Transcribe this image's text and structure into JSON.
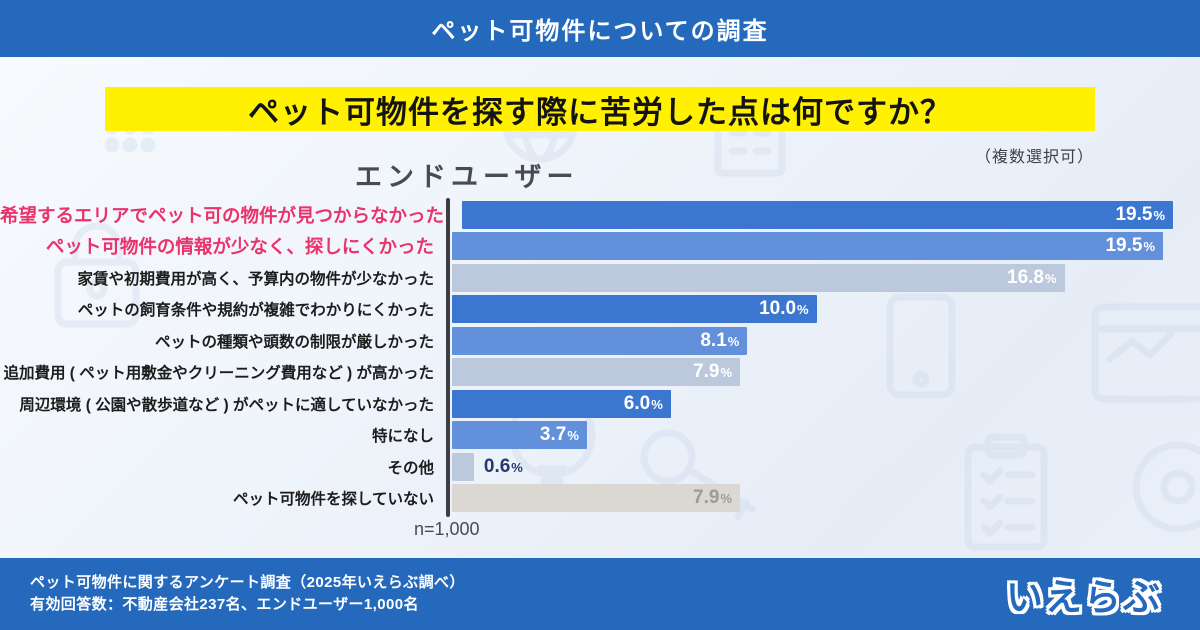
{
  "header": {
    "title": "ペット可物件についての調査"
  },
  "question": {
    "title": "ペット可物件を探す際に苦労した点は何ですか？",
    "note": "（複数選択可）",
    "group_label": "エンドユーザー"
  },
  "chart_data": {
    "type": "bar",
    "orientation": "horizontal",
    "title": "ペット可物件を探す際に苦労した点は何ですか？",
    "group": "エンドユーザー",
    "unit": "%",
    "xlim": [
      0,
      19.5
    ],
    "grid": false,
    "legend": "none",
    "categories": [
      "希望するエリアでペット可の物件が見つからなかった",
      "ペット可物件の情報が少なく、探しにくかった",
      "家賃や初期費用が高く、予算内の物件が少なかった",
      "ペットの飼育条件や規約が複雑でわかりにくかった",
      "ペットの種類や頭数の制限が厳しかった",
      "追加費用 ( ペット用敷金やクリーニング費用など ) が高かった",
      "周辺環境 ( 公園や散歩道など ) がペットに適していなかった",
      "特になし",
      "その他",
      "ペット可物件を探していない"
    ],
    "values": [
      19.5,
      19.5,
      16.8,
      10.0,
      8.1,
      7.9,
      6.0,
      3.7,
      0.6,
      7.9
    ],
    "value_labels": [
      "19.5",
      "19.5",
      "16.8",
      "10.0",
      "8.1",
      "7.9",
      "6.0",
      "3.7",
      "0.6",
      "7.9"
    ],
    "bar_styles": [
      "dark",
      "mid",
      "light",
      "dark",
      "mid",
      "light",
      "dark",
      "mid",
      "light",
      "neutral"
    ],
    "label_styles": [
      "highlight",
      "highlight",
      "normal",
      "normal",
      "normal",
      "normal",
      "normal",
      "normal",
      "normal",
      "normal"
    ],
    "value_placements": [
      "inside",
      "inside",
      "inside",
      "inside",
      "inside",
      "inside",
      "inside",
      "inside",
      "outside",
      "inside-muted"
    ],
    "sample_note": "n=1,000"
  },
  "footer": {
    "line1": "ペット可物件に関するアンケート調査（2025年いえらぶ調べ）",
    "line2": "有効回答数：不動産会社237名、エンドユーザー1,000名",
    "logo": "いえらぶ"
  },
  "colors": {
    "header_bg": "#2569bd",
    "footer_bg": "#2569bd",
    "highlight_band_bg": "#fff100",
    "bar_dark": "#3b76d1",
    "bar_mid": "#6290db",
    "bar_light": "#bcc9dc",
    "bar_neutral": "#dbd8d3",
    "label_highlight": "#e8336b",
    "value_outside": "#27396b",
    "value_muted": "#9d9b96"
  }
}
